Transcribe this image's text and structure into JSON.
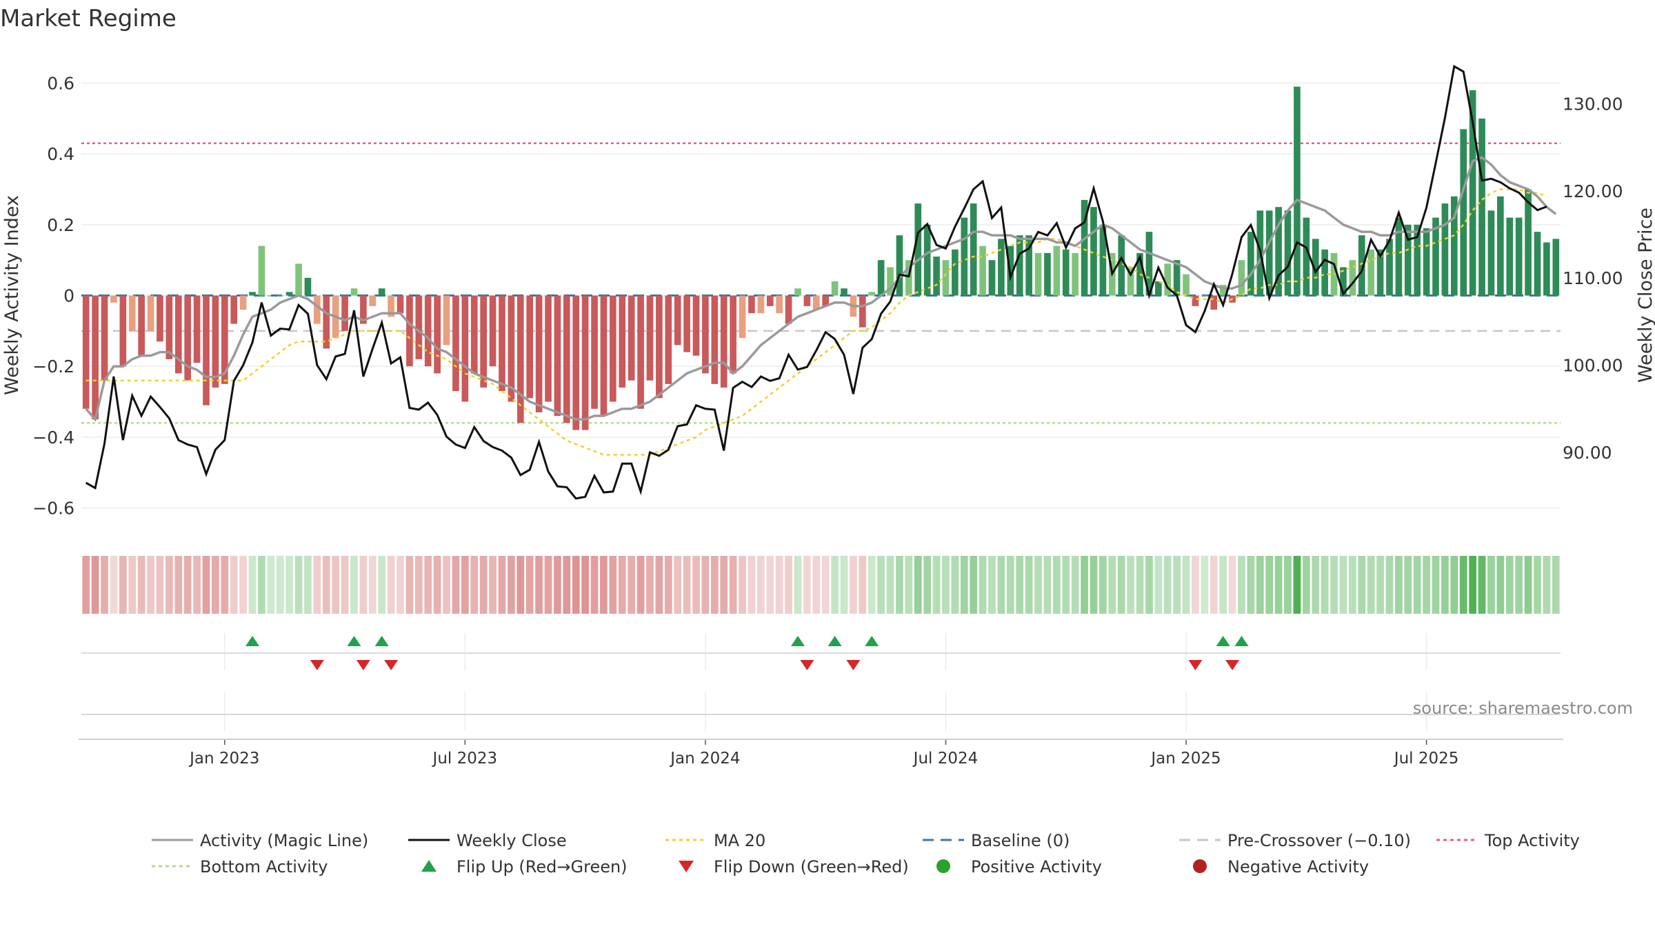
{
  "chart_data": {
    "type": "bar",
    "title": "Market Regime",
    "source_note": "source: sharemaestro.com",
    "ylabel": "Weekly Activity Index",
    "y2label": "Weekly Close Price",
    "ylim": [
      -0.64,
      0.64
    ],
    "y2lim": [
      82,
      134
    ],
    "yticks": [
      0.6,
      0.4,
      0.2,
      0,
      -0.2,
      -0.4,
      -0.6
    ],
    "ytick_labels": [
      "0.6",
      "0.4",
      "0.2",
      "0",
      "−0.2",
      "−0.4",
      "−0.6"
    ],
    "y2ticks": [
      130,
      120,
      110,
      100,
      90
    ],
    "y2tick_labels": [
      "130.00",
      "120.00",
      "110.00",
      "100.00",
      "90.00"
    ],
    "xtick_labels": [
      "Jan 2023",
      "Jul 2023",
      "Jan 2024",
      "Jul 2024",
      "Jan 2025",
      "Jul 2025"
    ],
    "xtick_week_index": [
      15,
      41,
      67,
      93,
      119,
      145
    ],
    "grid": true,
    "legend_position": "bottom",
    "colors": {
      "neg_strong": "#c9595a",
      "neg_weak": "#e8a07e",
      "pos_strong": "#2e8b57",
      "pos_weak": "#7fc37b",
      "activity_line": "#9a9a9a",
      "close_line": "#111111",
      "ma20": "#f0d12c",
      "baseline": "#3a74a8",
      "pre_crossover": "#c6c6c6",
      "top_activity": "#e8607a",
      "bottom_activity": "#b5dc8a",
      "flip_up": "#21a14d",
      "flip_down": "#d62728",
      "positive_dot": "#2ca02c",
      "negative_dot": "#b22222"
    },
    "reference_lines": {
      "baseline": 0,
      "pre_crossover": -0.1,
      "top_activity": 0.43,
      "bottom_activity": -0.36
    },
    "activity_index": [
      -0.32,
      -0.35,
      -0.24,
      -0.02,
      -0.2,
      -0.1,
      -0.17,
      -0.1,
      -0.13,
      -0.18,
      -0.22,
      -0.24,
      -0.19,
      -0.31,
      -0.26,
      -0.25,
      -0.08,
      -0.04,
      0.01,
      0.14,
      0.0,
      0.0,
      0.01,
      0.09,
      0.05,
      -0.08,
      -0.15,
      -0.12,
      -0.1,
      0.02,
      -0.08,
      -0.03,
      0.02,
      -0.06,
      -0.05,
      -0.2,
      -0.18,
      -0.2,
      -0.22,
      -0.14,
      -0.27,
      -0.3,
      -0.22,
      -0.26,
      -0.2,
      -0.27,
      -0.3,
      -0.36,
      -0.29,
      -0.33,
      -0.3,
      -0.34,
      -0.36,
      -0.38,
      -0.38,
      -0.32,
      -0.34,
      -0.3,
      -0.26,
      -0.24,
      -0.32,
      -0.24,
      -0.29,
      -0.25,
      -0.14,
      -0.16,
      -0.17,
      -0.22,
      -0.25,
      -0.26,
      -0.22,
      -0.12,
      -0.05,
      -0.05,
      -0.03,
      -0.05,
      -0.08,
      0.02,
      -0.03,
      -0.04,
      -0.03,
      0.04,
      0.02,
      -0.06,
      -0.09,
      0.01,
      0.1,
      0.08,
      0.17,
      0.1,
      0.26,
      0.2,
      0.11,
      0.1,
      0.13,
      0.22,
      0.26,
      0.14,
      0.1,
      0.16,
      0.14,
      0.17,
      0.17,
      0.12,
      0.12,
      0.14,
      0.13,
      0.12,
      0.27,
      0.25,
      0.2,
      0.12,
      0.17,
      0.08,
      0.12,
      0.18,
      0.04,
      0.09,
      0.1,
      0.06,
      -0.03,
      0.0,
      -0.04,
      0.03,
      -0.02,
      0.1,
      0.18,
      0.24,
      0.24,
      0.25,
      0.24,
      0.59,
      0.22,
      0.16,
      0.13,
      0.12,
      0.08,
      0.1,
      0.17,
      0.13,
      0.13,
      0.16,
      0.22,
      0.2,
      0.2,
      0.19,
      0.22,
      0.26,
      0.28,
      0.47,
      0.58,
      0.5,
      0.24,
      0.28,
      0.22,
      0.22,
      0.3,
      0.18,
      0.15,
      0.16
    ],
    "magic_line": [
      -0.32,
      -0.35,
      -0.24,
      -0.2,
      -0.2,
      -0.18,
      -0.17,
      -0.17,
      -0.16,
      -0.16,
      -0.18,
      -0.2,
      -0.21,
      -0.23,
      -0.23,
      -0.22,
      -0.17,
      -0.11,
      -0.06,
      -0.05,
      -0.04,
      -0.02,
      -0.01,
      0.0,
      -0.01,
      -0.03,
      -0.05,
      -0.06,
      -0.07,
      -0.06,
      -0.07,
      -0.06,
      -0.05,
      -0.05,
      -0.05,
      -0.08,
      -0.1,
      -0.12,
      -0.15,
      -0.16,
      -0.18,
      -0.2,
      -0.22,
      -0.23,
      -0.24,
      -0.25,
      -0.26,
      -0.28,
      -0.3,
      -0.31,
      -0.32,
      -0.33,
      -0.34,
      -0.35,
      -0.35,
      -0.34,
      -0.34,
      -0.33,
      -0.32,
      -0.32,
      -0.31,
      -0.3,
      -0.28,
      -0.26,
      -0.24,
      -0.22,
      -0.21,
      -0.2,
      -0.19,
      -0.19,
      -0.22,
      -0.2,
      -0.17,
      -0.14,
      -0.12,
      -0.1,
      -0.08,
      -0.06,
      -0.05,
      -0.04,
      -0.03,
      -0.02,
      -0.02,
      -0.03,
      -0.03,
      -0.02,
      0.0,
      0.02,
      0.05,
      0.08,
      0.1,
      0.12,
      0.13,
      0.14,
      0.15,
      0.16,
      0.18,
      0.18,
      0.17,
      0.17,
      0.17,
      0.16,
      0.16,
      0.16,
      0.16,
      0.15,
      0.15,
      0.14,
      0.16,
      0.18,
      0.2,
      0.19,
      0.17,
      0.15,
      0.13,
      0.12,
      0.11,
      0.1,
      0.09,
      0.08,
      0.06,
      0.04,
      0.03,
      0.02,
      0.02,
      0.03,
      0.06,
      0.1,
      0.15,
      0.2,
      0.24,
      0.27,
      0.26,
      0.25,
      0.24,
      0.22,
      0.2,
      0.19,
      0.18,
      0.18,
      0.17,
      0.17,
      0.18,
      0.18,
      0.18,
      0.18,
      0.19,
      0.2,
      0.22,
      0.3,
      0.38,
      0.39,
      0.37,
      0.34,
      0.32,
      0.31,
      0.3,
      0.28,
      0.25,
      0.23
    ],
    "ma20_activity": [
      -0.24,
      -0.24,
      -0.24,
      -0.24,
      -0.24,
      -0.24,
      -0.24,
      -0.24,
      -0.24,
      -0.24,
      -0.24,
      -0.24,
      -0.24,
      -0.24,
      -0.24,
      -0.24,
      -0.24,
      -0.24,
      -0.22,
      -0.2,
      -0.18,
      -0.16,
      -0.14,
      -0.13,
      -0.13,
      -0.13,
      -0.13,
      -0.12,
      -0.11,
      -0.1,
      -0.1,
      -0.1,
      -0.1,
      -0.1,
      -0.1,
      -0.12,
      -0.14,
      -0.16,
      -0.17,
      -0.18,
      -0.2,
      -0.22,
      -0.23,
      -0.24,
      -0.25,
      -0.27,
      -0.29,
      -0.31,
      -0.33,
      -0.35,
      -0.37,
      -0.39,
      -0.41,
      -0.42,
      -0.43,
      -0.44,
      -0.45,
      -0.45,
      -0.45,
      -0.45,
      -0.45,
      -0.45,
      -0.44,
      -0.43,
      -0.42,
      -0.41,
      -0.4,
      -0.38,
      -0.37,
      -0.36,
      -0.35,
      -0.34,
      -0.32,
      -0.3,
      -0.28,
      -0.26,
      -0.24,
      -0.22,
      -0.2,
      -0.18,
      -0.16,
      -0.14,
      -0.12,
      -0.1,
      -0.1,
      -0.09,
      -0.07,
      -0.05,
      -0.02,
      0.0,
      0.01,
      0.02,
      0.03,
      0.06,
      0.09,
      0.1,
      0.11,
      0.11,
      0.12,
      0.13,
      0.14,
      0.15,
      0.15,
      0.15,
      0.16,
      0.16,
      0.15,
      0.14,
      0.13,
      0.12,
      0.11,
      0.1,
      0.09,
      0.08,
      0.06,
      0.05,
      0.04,
      0.03,
      0.01,
      0.0,
      -0.01,
      -0.01,
      -0.01,
      -0.02,
      -0.01,
      0.0,
      0.02,
      0.02,
      0.03,
      0.03,
      0.04,
      0.04,
      0.05,
      0.05,
      0.06,
      0.06,
      0.07,
      0.08,
      0.09,
      0.1,
      0.11,
      0.12,
      0.12,
      0.13,
      0.14,
      0.14,
      0.15,
      0.16,
      0.17,
      0.2,
      0.24,
      0.27,
      0.29,
      0.3,
      0.3,
      0.3,
      0.29,
      0.29,
      0.28
    ],
    "weekly_close": [
      86.5,
      85.9,
      91.0,
      98.7,
      91.4,
      96.5,
      94.2,
      96.4,
      95.2,
      93.9,
      91.4,
      90.9,
      90.6,
      87.5,
      90.3,
      91.4,
      98.2,
      100.0,
      102.6,
      107.2,
      103.4,
      104.2,
      104.1,
      106.9,
      105.9,
      100.0,
      98.4,
      101.0,
      101.3,
      106.3,
      98.7,
      101.9,
      104.9,
      100.2,
      100.9,
      95.1,
      94.9,
      95.7,
      94.3,
      91.8,
      90.9,
      90.5,
      92.9,
      91.3,
      90.6,
      90.2,
      89.4,
      87.4,
      88.0,
      91.2,
      87.8,
      86.1,
      86.0,
      84.7,
      84.9,
      87.3,
      85.4,
      85.5,
      88.7,
      88.7,
      85.5,
      90.0,
      89.6,
      90.3,
      93.0,
      93.2,
      95.4,
      95.0,
      94.9,
      90.2,
      97.4,
      98.1,
      97.5,
      98.7,
      98.2,
      98.5,
      101.2,
      99.5,
      99.8,
      101.7,
      103.8,
      103.0,
      101.2,
      96.7,
      102.0,
      103.0,
      105.9,
      107.3,
      110.4,
      110.2,
      115.2,
      116.2,
      113.8,
      113.4,
      115.9,
      118.0,
      120.2,
      121.1,
      116.9,
      118.1,
      110.1,
      112.8,
      113.4,
      115.3,
      114.9,
      116.3,
      113.5,
      115.7,
      116.4,
      120.3,
      116.5,
      110.5,
      112.3,
      110.4,
      112.4,
      108.0,
      111.2,
      108.9,
      108.0,
      104.6,
      103.8,
      106.2,
      109.3,
      106.9,
      110.5,
      114.7,
      116.1,
      113.2,
      107.7,
      110.3,
      111.3,
      114.1,
      113.5,
      110.7,
      112.1,
      111.6,
      108.2,
      109.4,
      110.8,
      114.4,
      112.5,
      114.3,
      117.5,
      114.4,
      114.7,
      118.1,
      123.2,
      128.4,
      134.3,
      133.7,
      127.9,
      121.2,
      121.4,
      121.0,
      120.3,
      119.8,
      118.7,
      117.8,
      118.2
    ]
  },
  "legend": {
    "activity_magic_line": "Activity (Magic Line)",
    "weekly_close": "Weekly Close",
    "ma20": "MA 20",
    "baseline": "Baseline (0)",
    "pre_crossover": "Pre-Crossover (−0.10)",
    "top_activity": "Top Activity",
    "bottom_activity": "Bottom Activity",
    "flip_up": "Flip Up (Red→Green)",
    "flip_down": "Flip Down (Green→Red)",
    "positive_activity": "Positive Activity",
    "negative_activity": "Negative Activity"
  }
}
